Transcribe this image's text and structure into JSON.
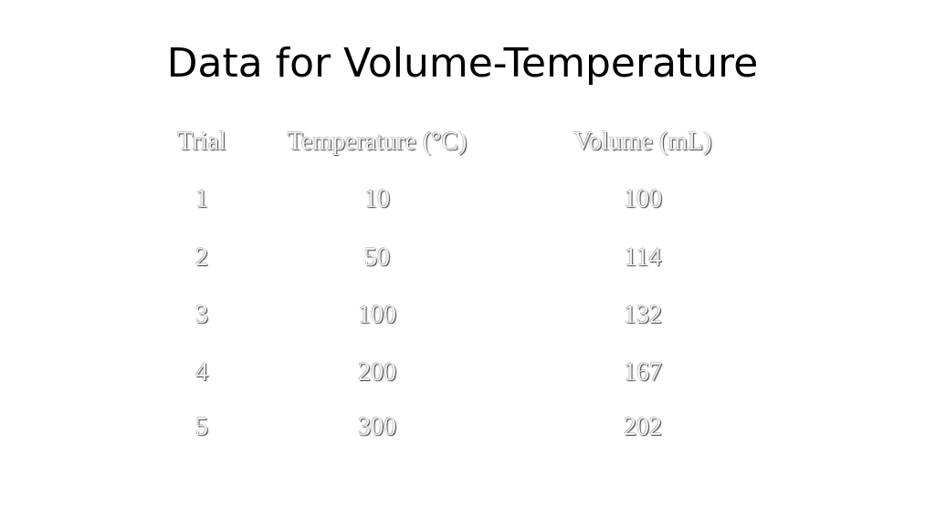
{
  "title": "Data for Volume-Temperature",
  "table": {
    "headers": [
      "Trial",
      "Temperature (°C)",
      "Volume (mL)"
    ],
    "rows": [
      [
        "1",
        "10",
        "100"
      ],
      [
        "2",
        "50",
        "114"
      ],
      [
        "3",
        "100",
        "132"
      ],
      [
        "4",
        "200",
        "167"
      ],
      [
        "5",
        "300",
        "202"
      ]
    ]
  }
}
